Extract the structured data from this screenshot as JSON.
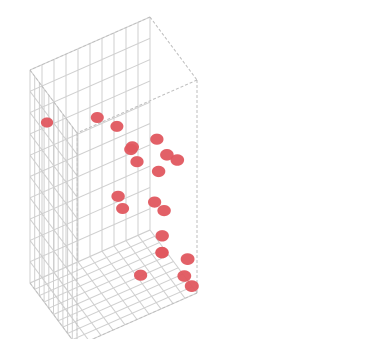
{
  "chart_data": {
    "type": "scatter",
    "dimensions": 3,
    "title": "",
    "xlabel": "",
    "ylabel": "",
    "zlabel": "",
    "grid": true,
    "grid_divisions": 10,
    "xlim": [
      0,
      1
    ],
    "ylim": [
      0,
      1
    ],
    "zlim": [
      0,
      1
    ],
    "point_color": "#e0575f",
    "grid_color": "#cfcfcf",
    "points": [
      {
        "x": 0.3,
        "y": 0.06,
        "z": 0.53
      },
      {
        "x": 0.47,
        "y": 0.46,
        "z": 0.74
      },
      {
        "x": 0.58,
        "y": 0.0,
        "z": 0.5
      },
      {
        "x": 0.87,
        "y": 0.5,
        "z": 0.76
      },
      {
        "x": 0.26,
        "y": 0.33,
        "z": 0.26
      },
      {
        "x": 0.08,
        "y": 0.89,
        "z": 0.75
      },
      {
        "x": 0.49,
        "y": 0.12,
        "z": 0.45
      },
      {
        "x": 0.87,
        "y": 0.2,
        "z": 0.66
      },
      {
        "x": 0.98,
        "y": 0.65,
        "z": 0.61
      },
      {
        "x": 0.95,
        "y": 0.52,
        "z": 0.8
      },
      {
        "x": 0.25,
        "y": 0.06,
        "z": 0.22
      },
      {
        "x": 0.49,
        "y": 0.27,
        "z": 0.0
      },
      {
        "x": 0.3,
        "y": 0.0,
        "z": 0.18
      },
      {
        "x": 0.49,
        "y": 0.3,
        "z": 0.54
      },
      {
        "x": 0.46,
        "y": 0.08,
        "z": 0.05
      },
      {
        "x": 0.46,
        "y": 0.08,
        "z": 0.05
      },
      {
        "x": 0.82,
        "y": 0.76,
        "z": 0.96
      },
      {
        "x": 0.49,
        "y": 0.09,
        "z": 0.14
      },
      {
        "x": 0.89,
        "y": 0.0,
        "z": 0.0
      },
      {
        "x": 0.73,
        "y": 0.0,
        "z": 0.0
      },
      {
        "x": 0.8,
        "y": 0.0,
        "z": 0.1
      }
    ]
  }
}
